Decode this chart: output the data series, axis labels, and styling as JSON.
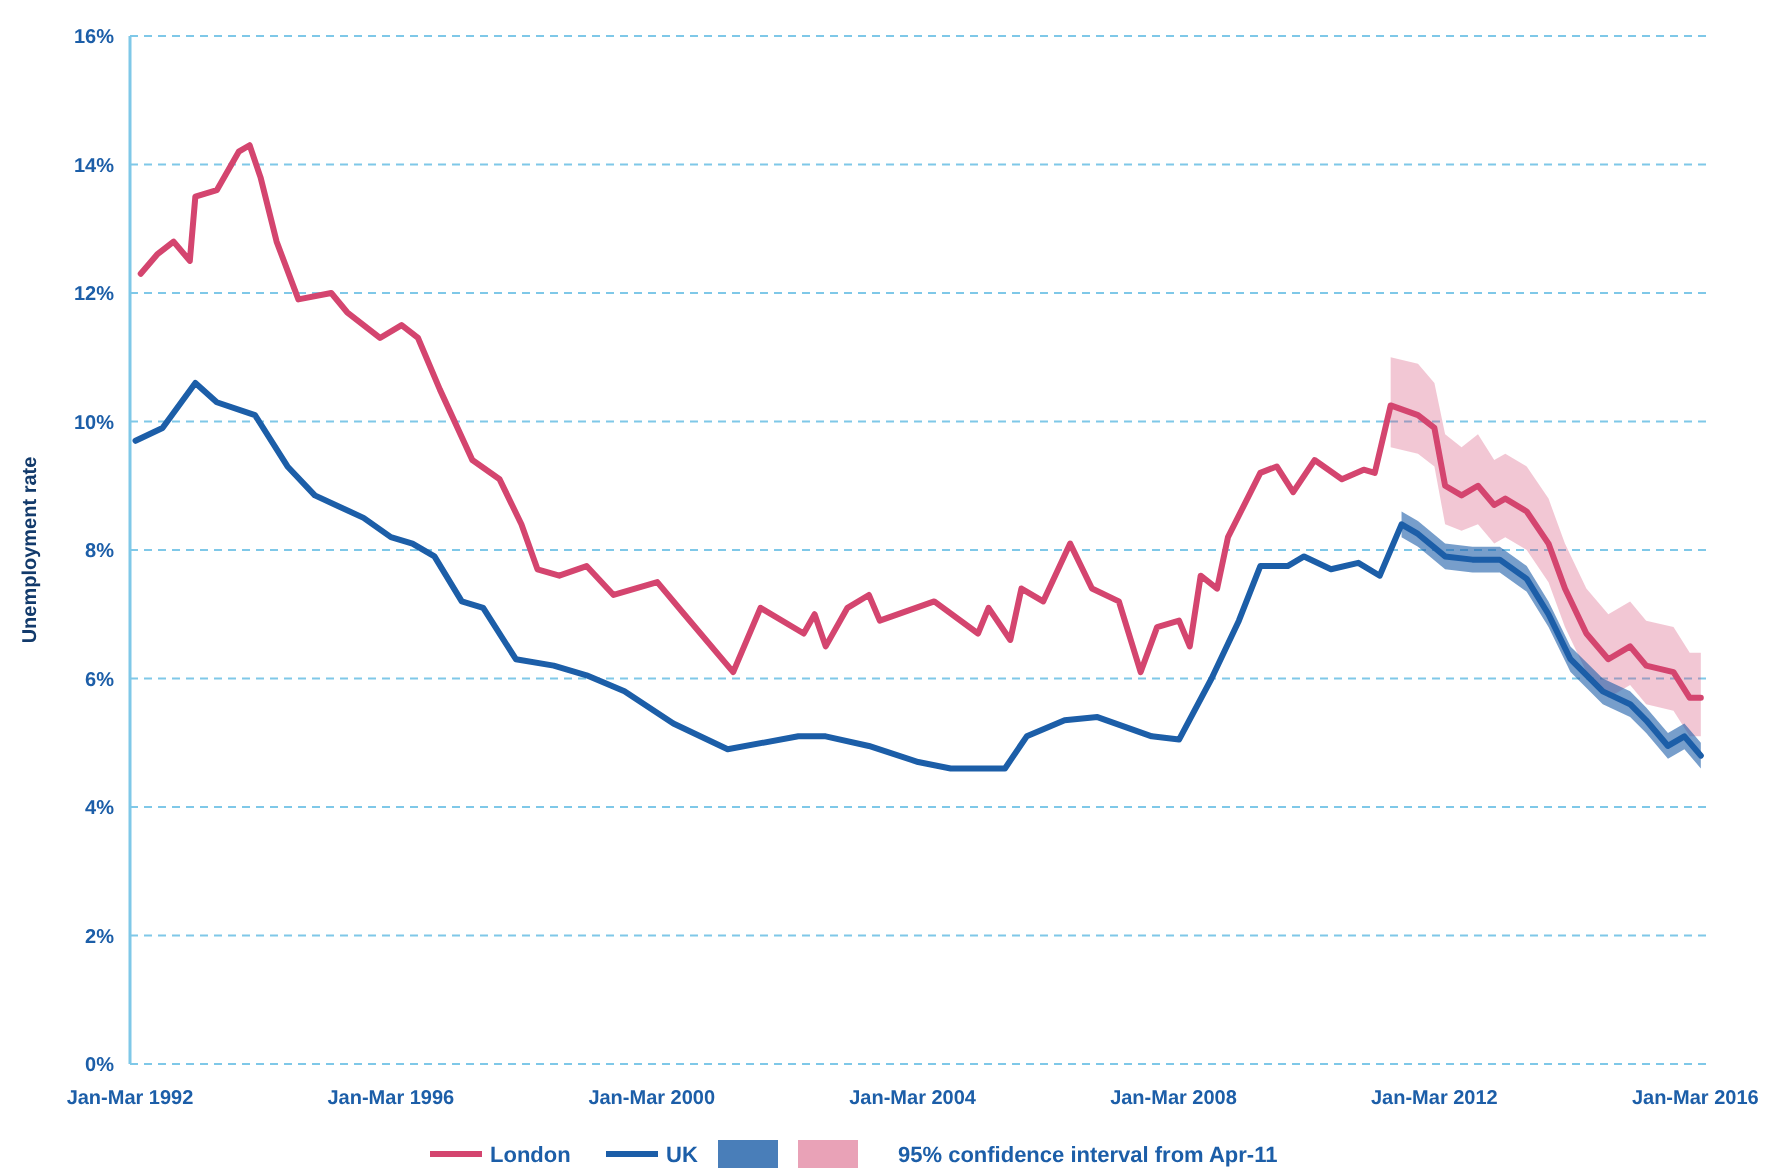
{
  "chart_data": {
    "type": "line",
    "ylabel": "Unemployment rate",
    "xlim": [
      "1992-01",
      "2016-03"
    ],
    "xticks": [
      {
        "value": "1992-01",
        "label": "Jan-Mar 1992"
      },
      {
        "value": "1996-01",
        "label": "Jan-Mar 1996"
      },
      {
        "value": "2000-01",
        "label": "Jan-Mar 2000"
      },
      {
        "value": "2004-01",
        "label": "Jan-Mar 2004"
      },
      {
        "value": "2008-01",
        "label": "Jan-Mar 2008"
      },
      {
        "value": "2012-01",
        "label": "Jan-Mar 2012"
      },
      {
        "value": "2016-01",
        "label": "Jan-Mar 2016"
      }
    ],
    "ylim": [
      0,
      16
    ],
    "yticks": [
      {
        "value": 0,
        "label": "0%"
      },
      {
        "value": 2,
        "label": "2%"
      },
      {
        "value": 4,
        "label": "4%"
      },
      {
        "value": 6,
        "label": "6%"
      },
      {
        "value": 8,
        "label": "8%"
      },
      {
        "value": 10,
        "label": "10%"
      },
      {
        "value": 12,
        "label": "12%"
      },
      {
        "value": 14,
        "label": "14%"
      },
      {
        "value": 16,
        "label": "16%"
      }
    ],
    "grid": "y",
    "legend": "bottom",
    "marker": "none",
    "line_style": "solid",
    "annotations": [
      "95% confidence interval from Apr-11"
    ],
    "series": [
      {
        "name": "London",
        "color": "#d4456f",
        "x": [
          "1992-03",
          "1992-06",
          "1992-09",
          "1992-12",
          "1993-01",
          "1993-05",
          "1993-09",
          "1993-11",
          "1994-01",
          "1994-04",
          "1994-08",
          "1995-02",
          "1995-05",
          "1995-11",
          "1996-03",
          "1996-06",
          "1996-10",
          "1997-04",
          "1997-09",
          "1998-01",
          "1998-04",
          "1998-08",
          "1999-01",
          "1999-06",
          "2000-02",
          "2000-07",
          "2001-04",
          "2001-09",
          "2002-05",
          "2002-07",
          "2002-09",
          "2003-01",
          "2003-05",
          "2003-07",
          "2004-05",
          "2005-01",
          "2005-03",
          "2005-07",
          "2005-09",
          "2006-01",
          "2006-06",
          "2006-10",
          "2007-03",
          "2007-07",
          "2007-10",
          "2008-02",
          "2008-04",
          "2008-06",
          "2008-09",
          "2008-11",
          "2009-05",
          "2009-08",
          "2009-11",
          "2010-03",
          "2010-08",
          "2010-12",
          "2011-02",
          "2011-05",
          "2011-10",
          "2012-01",
          "2012-03",
          "2012-06",
          "2012-09",
          "2012-12",
          "2013-02",
          "2013-06",
          "2013-10",
          "2014-01",
          "2014-05",
          "2014-09",
          "2015-01",
          "2015-04",
          "2015-09",
          "2015-12",
          "2016-02"
        ],
        "values": [
          12.3,
          12.6,
          12.8,
          12.5,
          13.5,
          13.6,
          14.2,
          14.3,
          13.8,
          12.8,
          11.9,
          12.0,
          11.7,
          11.3,
          11.5,
          11.3,
          10.5,
          9.4,
          9.1,
          8.4,
          7.7,
          7.6,
          7.75,
          7.3,
          7.5,
          7.0,
          6.1,
          7.1,
          6.7,
          7.0,
          6.5,
          7.1,
          7.3,
          6.9,
          7.2,
          6.7,
          7.1,
          6.6,
          7.4,
          7.2,
          8.1,
          7.4,
          7.2,
          6.1,
          6.8,
          6.9,
          6.5,
          7.6,
          7.4,
          8.2,
          9.2,
          9.3,
          8.9,
          9.4,
          9.1,
          9.25,
          9.2,
          10.25,
          10.1,
          9.9,
          9.0,
          8.85,
          9.0,
          8.7,
          8.8,
          8.6,
          8.1,
          7.4,
          6.7,
          6.3,
          6.5,
          6.2,
          6.1,
          5.7,
          5.7
        ],
        "lower": [
          null,
          null,
          null,
          null,
          null,
          null,
          null,
          null,
          null,
          null,
          null,
          null,
          null,
          null,
          null,
          null,
          null,
          null,
          null,
          null,
          null,
          null,
          null,
          null,
          null,
          null,
          null,
          null,
          null,
          null,
          null,
          null,
          null,
          null,
          null,
          null,
          null,
          null,
          null,
          null,
          null,
          null,
          null,
          null,
          null,
          null,
          null,
          null,
          null,
          null,
          null,
          null,
          null,
          null,
          null,
          null,
          null,
          9.6,
          9.5,
          9.3,
          8.4,
          8.3,
          8.4,
          8.1,
          8.2,
          8.0,
          7.5,
          6.8,
          6.1,
          5.7,
          5.9,
          5.6,
          5.5,
          5.1,
          5.1
        ],
        "upper": [
          null,
          null,
          null,
          null,
          null,
          null,
          null,
          null,
          null,
          null,
          null,
          null,
          null,
          null,
          null,
          null,
          null,
          null,
          null,
          null,
          null,
          null,
          null,
          null,
          null,
          null,
          null,
          null,
          null,
          null,
          null,
          null,
          null,
          null,
          null,
          null,
          null,
          null,
          null,
          null,
          null,
          null,
          null,
          null,
          null,
          null,
          null,
          null,
          null,
          null,
          null,
          null,
          null,
          null,
          null,
          null,
          null,
          11.0,
          10.9,
          10.6,
          9.8,
          9.6,
          9.8,
          9.4,
          9.5,
          9.3,
          8.8,
          8.1,
          7.4,
          7.0,
          7.2,
          6.9,
          6.8,
          6.4,
          6.4
        ]
      },
      {
        "name": "UK",
        "color": "#1c5ea8",
        "x": [
          "1992-02",
          "1992-07",
          "1993-01",
          "1993-05",
          "1993-12",
          "1994-06",
          "1994-11",
          "1995-08",
          "1996-01",
          "1996-05",
          "1996-09",
          "1997-02",
          "1997-06",
          "1997-12",
          "1998-07",
          "1999-01",
          "1999-08",
          "2000-05",
          "2001-03",
          "2002-04",
          "2002-09",
          "2003-05",
          "2004-02",
          "2004-08",
          "2005-06",
          "2005-10",
          "2006-05",
          "2006-11",
          "2007-09",
          "2008-02",
          "2008-08",
          "2009-01",
          "2009-05",
          "2009-10",
          "2010-01",
          "2010-06",
          "2010-11",
          "2011-03",
          "2011-07",
          "2011-10",
          "2012-03",
          "2012-08",
          "2013-01",
          "2013-06",
          "2013-10",
          "2014-02",
          "2014-08",
          "2015-01",
          "2015-04",
          "2015-08",
          "2015-11",
          "2016-02"
        ],
        "values": [
          9.7,
          9.9,
          10.6,
          10.3,
          10.1,
          9.3,
          8.85,
          8.5,
          8.2,
          8.1,
          7.9,
          7.2,
          7.1,
          6.3,
          6.2,
          6.05,
          5.8,
          5.3,
          4.9,
          5.1,
          5.1,
          4.95,
          4.7,
          4.6,
          4.6,
          5.1,
          5.35,
          5.4,
          5.1,
          5.05,
          6.0,
          6.9,
          7.75,
          7.75,
          7.9,
          7.7,
          7.8,
          7.6,
          8.4,
          8.25,
          7.9,
          7.85,
          7.85,
          7.55,
          7.0,
          6.3,
          5.8,
          5.6,
          5.35,
          4.95,
          5.1,
          4.8
        ],
        "lower": [
          null,
          null,
          null,
          null,
          null,
          null,
          null,
          null,
          null,
          null,
          null,
          null,
          null,
          null,
          null,
          null,
          null,
          null,
          null,
          null,
          null,
          null,
          null,
          null,
          null,
          null,
          null,
          null,
          null,
          null,
          null,
          null,
          null,
          null,
          null,
          null,
          null,
          null,
          8.2,
          8.05,
          7.7,
          7.65,
          7.65,
          7.35,
          6.8,
          6.1,
          5.6,
          5.4,
          5.15,
          4.75,
          4.9,
          4.6
        ],
        "upper": [
          null,
          null,
          null,
          null,
          null,
          null,
          null,
          null,
          null,
          null,
          null,
          null,
          null,
          null,
          null,
          null,
          null,
          null,
          null,
          null,
          null,
          null,
          null,
          null,
          null,
          null,
          null,
          null,
          null,
          null,
          null,
          null,
          null,
          null,
          null,
          null,
          null,
          null,
          8.6,
          8.45,
          8.1,
          8.05,
          8.05,
          7.75,
          7.2,
          6.5,
          6.0,
          5.8,
          5.55,
          5.15,
          5.3,
          5.0
        ]
      }
    ]
  }
}
